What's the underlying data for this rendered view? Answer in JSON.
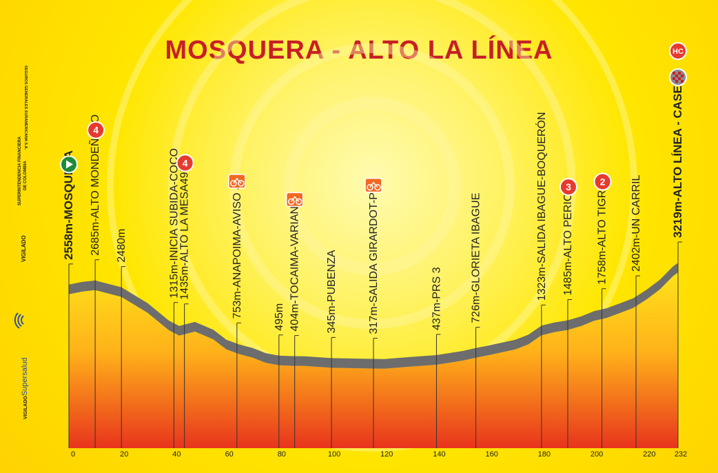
{
  "title": "MOSQUERA - ALTO LA LÍNEA",
  "sidebar": {
    "line1": "SUPERINTENDENCIA FINANCIERA",
    "line2": "DE COLOMBIA",
    "line3": "SEGUROS GENERALES SURAMERICANA S.A.",
    "vigilado": "VIGILADO",
    "supersalud_prefix": "VIGILADO",
    "supersalud_name": "Supersalud"
  },
  "colors": {
    "title": "#c62026",
    "profile_top": "#ffd21a",
    "profile_bottom": "#e8351c",
    "profile_surface": "#6d6d6d",
    "category_badge": "#e63a2f",
    "sprint_badge": "#f26a21"
  },
  "chart_data": {
    "type": "area",
    "xlabel": "",
    "ylabel": "",
    "xlim": [
      0,
      232
    ],
    "x_ticks": [
      0,
      20,
      40,
      60,
      80,
      100,
      120,
      140,
      160,
      180,
      200,
      220,
      232
    ],
    "profile": {
      "x": [
        0,
        5,
        10,
        20,
        30,
        38,
        42,
        48,
        55,
        60,
        65,
        70,
        75,
        80,
        85,
        90,
        100,
        110,
        120,
        130,
        140,
        150,
        155,
        160,
        170,
        175,
        180,
        185,
        190,
        195,
        200,
        205,
        210,
        215,
        220,
        225,
        230,
        232
      ],
      "y": [
        2558,
        2640,
        2685,
        2480,
        2000,
        1480,
        1315,
        1435,
        1200,
        900,
        753,
        650,
        495,
        420,
        404,
        400,
        345,
        330,
        317,
        380,
        437,
        560,
        650,
        726,
        900,
        1050,
        1323,
        1420,
        1485,
        1600,
        1758,
        1850,
        2000,
        2150,
        2402,
        2700,
        3100,
        3219
      ]
    },
    "markers": [
      {
        "km": 0,
        "label": "2558m-MOSQUERA",
        "bold": true,
        "badge": "start"
      },
      {
        "km": 10,
        "label": "2685m-ALTO MONDEÑEDO",
        "badge": "cat",
        "badge_text": "4"
      },
      {
        "km": 20,
        "label": "2480m"
      },
      {
        "km": 40,
        "label": "1315m-INICIA SUBIDA-COCO"
      },
      {
        "km": 44,
        "label": "1435m-ALTO LA MESA495m",
        "badge": "cat",
        "badge_text": "4"
      },
      {
        "km": 64,
        "label": "753m-ANAPOIMA-AVISO 40",
        "badge": "sprint"
      },
      {
        "km": 80,
        "label": "495m"
      },
      {
        "km": 86,
        "label": "404m-TOCAIMA-VARIANTE",
        "badge": "sprint"
      },
      {
        "km": 100,
        "label": "345m-PUBENZA"
      },
      {
        "km": 116,
        "label": "317m-SALIDA GIRARDOT-PR1",
        "badge": "sprint"
      },
      {
        "km": 140,
        "label": "437m-PRS 3"
      },
      {
        "km": 155,
        "label": "726m-GLORIETA IBAGUE"
      },
      {
        "km": 180,
        "label": "1323m-SALIDA IBAGUE-BOQUERÓN"
      },
      {
        "km": 190,
        "label": "1485m-ALTO PERICO",
        "badge": "cat",
        "badge_text": "3"
      },
      {
        "km": 203,
        "label": "1758m-ALTO TIGRE",
        "badge": "cat",
        "badge_text": "2"
      },
      {
        "km": 216,
        "label": "2402m-UN CARRIL"
      },
      {
        "km": 232,
        "label": "3219m-ALTO LÍNEA - CASETA",
        "bold": true,
        "badge": "finish",
        "badge_text": "HC"
      }
    ]
  }
}
